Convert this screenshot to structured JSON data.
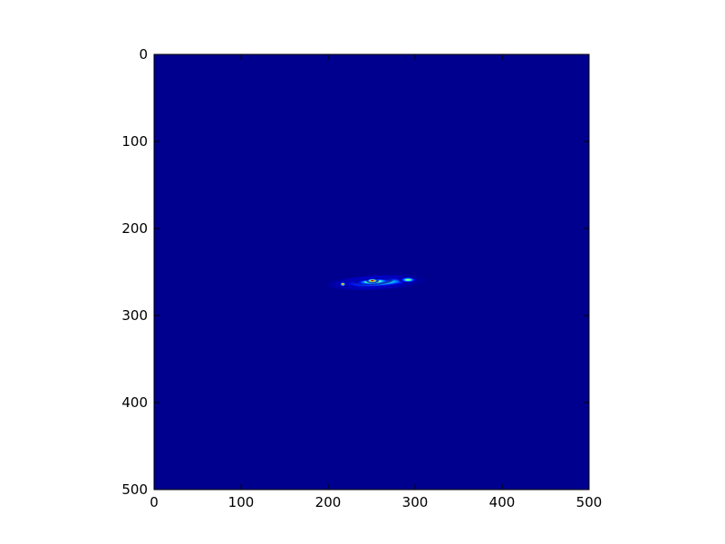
{
  "chart_data": {
    "type": "heatmap",
    "title": "",
    "xlabel": "",
    "ylabel": "",
    "colormap": "jet",
    "xlim": [
      0,
      500
    ],
    "ylim": [
      500,
      0
    ],
    "y_axis_inverted": true,
    "grid": false,
    "legend": "none",
    "x_ticks": [
      {
        "value": 0,
        "label": "0"
      },
      {
        "value": 100,
        "label": "100"
      },
      {
        "value": 200,
        "label": "200"
      },
      {
        "value": 300,
        "label": "300"
      },
      {
        "value": 400,
        "label": "400"
      },
      {
        "value": 500,
        "label": "500"
      }
    ],
    "y_ticks": [
      {
        "value": 0,
        "label": "0"
      },
      {
        "value": 100,
        "label": "100"
      },
      {
        "value": 200,
        "label": "200"
      },
      {
        "value": 300,
        "label": "300"
      },
      {
        "value": 400,
        "label": "400"
      },
      {
        "value": 500,
        "label": "500"
      }
    ],
    "background_level": 0.0,
    "features": [
      {
        "name": "halo",
        "cx": 255,
        "cy": 262,
        "rx": 70,
        "ry": 11,
        "angle_deg": -3,
        "peak": 0.38,
        "falloff": "gaussian"
      },
      {
        "name": "main-band",
        "cx": 258,
        "cy": 262,
        "rx": 50,
        "ry": 6,
        "angle_deg": -3,
        "peak": 0.55,
        "falloff": "gaussian"
      },
      {
        "name": "core",
        "cx": 252,
        "cy": 261,
        "rx": 24,
        "ry": 4,
        "angle_deg": -3,
        "peak": 0.75,
        "falloff": "gaussian"
      },
      {
        "name": "peak",
        "cx": 251,
        "cy": 260,
        "rx": 8,
        "ry": 3,
        "angle_deg": 0,
        "peak": 1.0,
        "falloff": "gaussian"
      },
      {
        "name": "left-spot",
        "cx": 217,
        "cy": 264,
        "rx": 4,
        "ry": 3,
        "angle_deg": 0,
        "peak": 0.85,
        "falloff": "gaussian"
      },
      {
        "name": "right-lobe",
        "cx": 292,
        "cy": 259,
        "rx": 12,
        "ry": 4,
        "angle_deg": 0,
        "peak": 0.55,
        "falloff": "gaussian"
      }
    ]
  }
}
